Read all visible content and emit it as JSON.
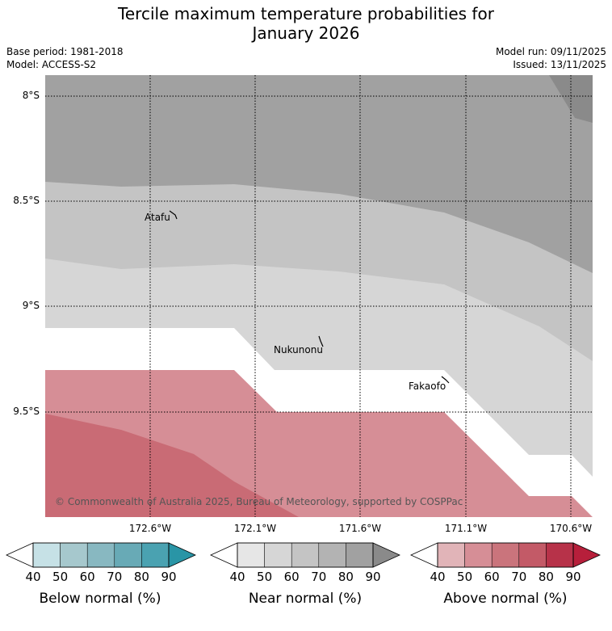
{
  "title": {
    "line1": "Tercile maximum temperature probabilities for",
    "line2": "January 2026"
  },
  "meta": {
    "base_period": "Base period: 1981-2018",
    "model": "Model: ACCESS-S2",
    "model_run": "Model run: 09/11/2025",
    "issued": "Issued: 13/11/2025"
  },
  "map": {
    "lat_labels": [
      "8°S",
      "8.5°S",
      "9°S",
      "9.5°S"
    ],
    "lon_labels": [
      "172.6°W",
      "172.1°W",
      "171.6°W",
      "171.1°W",
      "170.6°W"
    ],
    "places": [
      "Atafu",
      "Nukunonu",
      "Fakaofo"
    ],
    "copyright": "© Commonwealth of Australia 2025, Bureau of Meteorology, supported by COSPPac",
    "colors": {
      "near_50": "#d6d6d6",
      "near_60": "#c4c4c4",
      "near_70": "#a1a1a1",
      "near_80": "#8a8a8a",
      "above_50": "#d68e96",
      "above_60": "#c96b75"
    }
  },
  "legends": [
    {
      "title": "Below normal (%)",
      "ticks": [
        "40",
        "50",
        "60",
        "70",
        "80",
        "90"
      ],
      "colors": [
        "#ffffff",
        "#c6e1e6",
        "#a6c8cd",
        "#88b8c1",
        "#68aab6",
        "#4aa2b1",
        "#2995a6"
      ]
    },
    {
      "title": "Near normal (%)",
      "ticks": [
        "40",
        "50",
        "60",
        "70",
        "80",
        "90"
      ],
      "colors": [
        "#ffffff",
        "#e6e6e6",
        "#d6d6d6",
        "#c4c4c4",
        "#b3b3b3",
        "#a1a1a1",
        "#8a8a8a"
      ]
    },
    {
      "title": "Above normal (%)",
      "ticks": [
        "40",
        "50",
        "60",
        "70",
        "80",
        "90"
      ],
      "colors": [
        "#ffffff",
        "#e1b4b8",
        "#d68e96",
        "#ca747c",
        "#c35a67",
        "#b73249",
        "#b71f3b"
      ]
    }
  ]
}
